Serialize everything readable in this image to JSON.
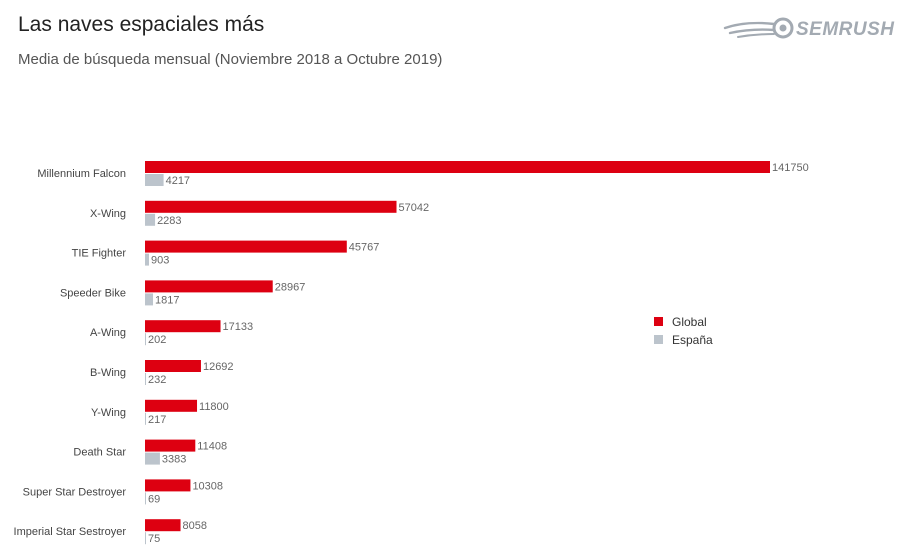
{
  "header": {
    "title": "Las naves espaciales más",
    "subtitle": "Media de búsqueda mensual (Noviembre 2018 a Octubre 2019)",
    "brand": "SEMRUSH"
  },
  "colors": {
    "global": "#dd0011",
    "espana": "#bcc4cc",
    "brand": "#a3aab2"
  },
  "chart_data": {
    "type": "bar",
    "orientation": "horizontal",
    "title": "Las naves espaciales más",
    "subtitle": "Media de búsqueda mensual (Noviembre 2018 a Octubre 2019)",
    "categories": [
      "Millennium Falcon",
      "X-Wing",
      "TIE Fighter",
      "Speeder Bike",
      "A-Wing",
      "B-Wing",
      "Y-Wing",
      "Death Star",
      "Super Star Destroyer",
      "Imperial Star Sestroyer"
    ],
    "series": [
      {
        "name": "Global",
        "color": "#dd0011",
        "values": [
          141750,
          57042,
          45767,
          28967,
          17133,
          12692,
          11800,
          11408,
          10308,
          8058
        ]
      },
      {
        "name": "España",
        "color": "#bcc4cc",
        "values": [
          4217,
          2283,
          903,
          1817,
          202,
          232,
          217,
          3383,
          69,
          75
        ]
      }
    ],
    "xlim": [
      0,
      141750
    ],
    "grid": false,
    "legend_position": "right"
  }
}
